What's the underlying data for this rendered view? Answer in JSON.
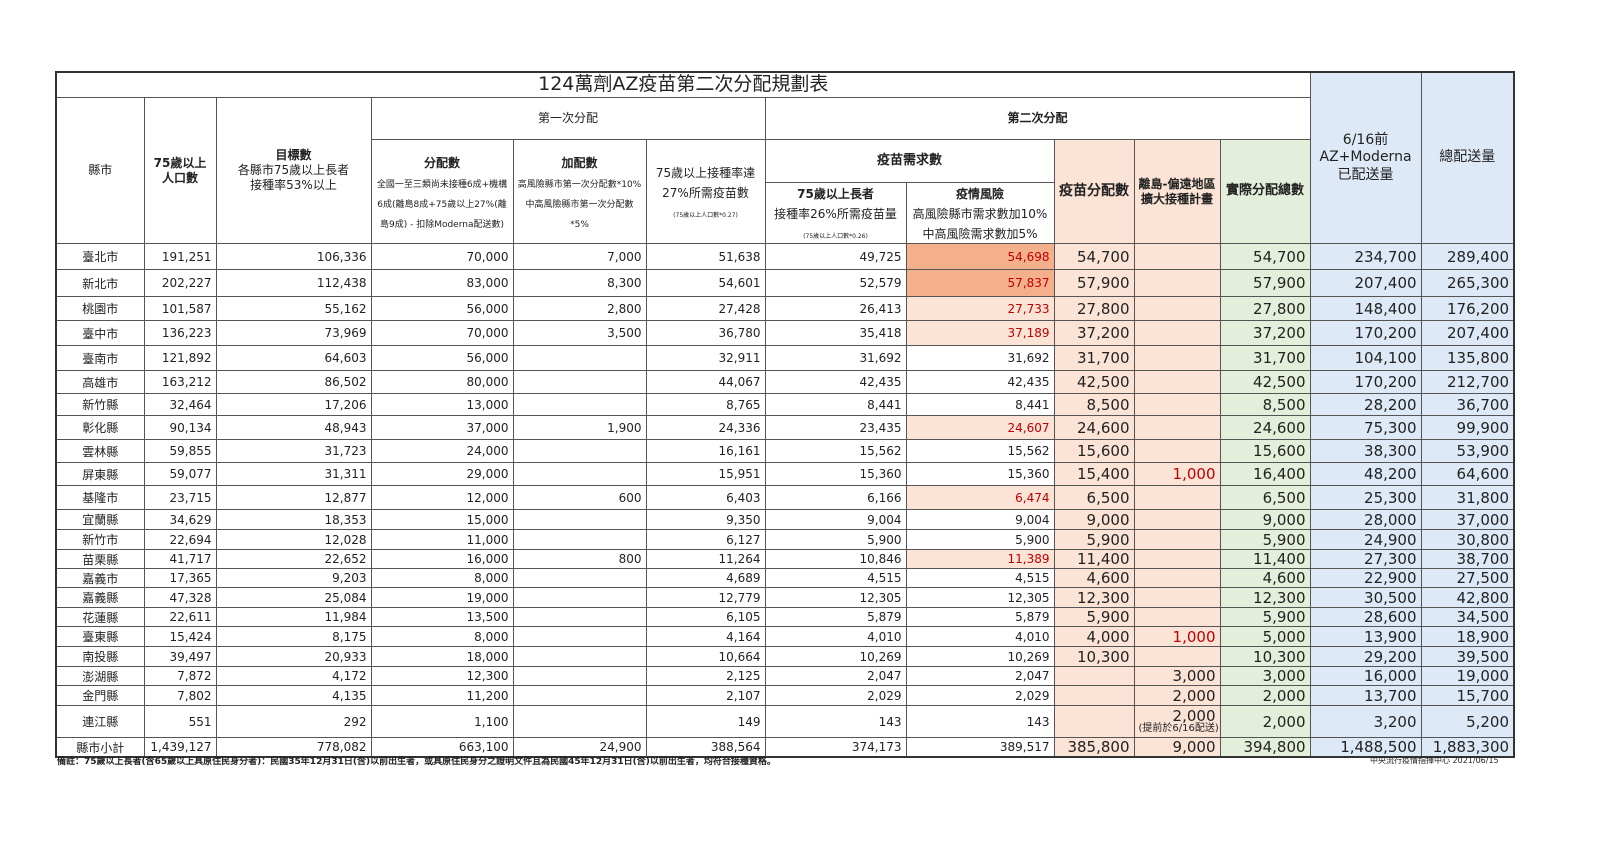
{
  "title": "124萬劑AZ疫苗第二次分配規劃表",
  "headers": {
    "county": "縣市",
    "pop75": "75歲以上\n人口數",
    "target_title": "目標數",
    "target_desc": "各縣市75歲以上長者\n接種率53%以上",
    "first": "第一次分配",
    "alloc_title": "分配數",
    "alloc_desc": "全國一至三類尚未接種6成+機構6成(離島8成+75歲以上27%(離島9成) - 扣除Moderna配送數)",
    "extra_title": "加配數",
    "extra_desc": "高風險縣市第一次分配數*10%\n中高風險縣市第一次分配數*5%",
    "need27_title": "75歲以上接種率達\n27%所需疫苗數",
    "need27_note": "(75歲以上人口數*0.27)",
    "second": "第二次分配",
    "demand": "疫苗需求數",
    "elder_title": "75歲以上長者",
    "elder_desc": "接種率26%所需疫苗量",
    "elder_note": "(75歲以上人口數*0.26)",
    "risk_title": "疫情風險",
    "risk_desc": "高風險縣市需求數加10%\n中高風險需求數加5%",
    "vaccine_alloc": "疫苗分配數",
    "island": "離島-偏遠地區\n擴大接種計畫",
    "actual_total": "實際分配總數",
    "before616": "6/16前\nAZ+Moderna\n已配送量",
    "grand_total": "總配送量"
  },
  "rows": [
    [
      "臺北市",
      "191,251",
      "106,336",
      "70,000",
      "7,000",
      "51,638",
      "49,725",
      "54,698",
      "54,700",
      "",
      "54,700",
      "234,700",
      "289,400"
    ],
    [
      "新北市",
      "202,227",
      "112,438",
      "83,000",
      "8,300",
      "54,601",
      "52,579",
      "57,837",
      "57,900",
      "",
      "57,900",
      "207,400",
      "265,300"
    ],
    [
      "桃園市",
      "101,587",
      "55,162",
      "56,000",
      "2,800",
      "27,428",
      "26,413",
      "27,733",
      "27,800",
      "",
      "27,800",
      "148,400",
      "176,200"
    ],
    [
      "臺中市",
      "136,223",
      "73,969",
      "70,000",
      "3,500",
      "36,780",
      "35,418",
      "37,189",
      "37,200",
      "",
      "37,200",
      "170,200",
      "207,400"
    ],
    [
      "臺南市",
      "121,892",
      "64,603",
      "56,000",
      "",
      "32,911",
      "31,692",
      "31,692",
      "31,700",
      "",
      "31,700",
      "104,100",
      "135,800"
    ],
    [
      "高雄市",
      "163,212",
      "86,502",
      "80,000",
      "",
      "44,067",
      "42,435",
      "42,435",
      "42,500",
      "",
      "42,500",
      "170,200",
      "212,700"
    ],
    [
      "新竹縣",
      "32,464",
      "17,206",
      "13,000",
      "",
      "8,765",
      "8,441",
      "8,441",
      "8,500",
      "",
      "8,500",
      "28,200",
      "36,700"
    ],
    [
      "彰化縣",
      "90,134",
      "48,943",
      "37,000",
      "1,900",
      "24,336",
      "23,435",
      "24,607",
      "24,600",
      "",
      "24,600",
      "75,300",
      "99,900"
    ],
    [
      "雲林縣",
      "59,855",
      "31,723",
      "24,000",
      "",
      "16,161",
      "15,562",
      "15,562",
      "15,600",
      "",
      "15,600",
      "38,300",
      "53,900"
    ],
    [
      "屏東縣",
      "59,077",
      "31,311",
      "29,000",
      "",
      "15,951",
      "15,360",
      "15,360",
      "15,400",
      "1,000",
      "16,400",
      "48,200",
      "64,600"
    ],
    [
      "基隆市",
      "23,715",
      "12,877",
      "12,000",
      "600",
      "6,403",
      "6,166",
      "6,474",
      "6,500",
      "",
      "6,500",
      "25,300",
      "31,800"
    ],
    [
      "宜蘭縣",
      "34,629",
      "18,353",
      "15,000",
      "",
      "9,350",
      "9,004",
      "9,004",
      "9,000",
      "",
      "9,000",
      "28,000",
      "37,000"
    ],
    [
      "新竹市",
      "22,694",
      "12,028",
      "11,000",
      "",
      "6,127",
      "5,900",
      "5,900",
      "5,900",
      "",
      "5,900",
      "24,900",
      "30,800"
    ],
    [
      "苗栗縣",
      "41,717",
      "22,652",
      "16,000",
      "800",
      "11,264",
      "10,846",
      "11,389",
      "11,400",
      "",
      "11,400",
      "27,300",
      "38,700"
    ],
    [
      "嘉義市",
      "17,365",
      "9,203",
      "8,000",
      "",
      "4,689",
      "4,515",
      "4,515",
      "4,600",
      "",
      "4,600",
      "22,900",
      "27,500"
    ],
    [
      "嘉義縣",
      "47,328",
      "25,084",
      "19,000",
      "",
      "12,779",
      "12,305",
      "12,305",
      "12,300",
      "",
      "12,300",
      "30,500",
      "42,800"
    ],
    [
      "花蓮縣",
      "22,611",
      "11,984",
      "13,500",
      "",
      "6,105",
      "5,879",
      "5,879",
      "5,900",
      "",
      "5,900",
      "28,600",
      "34,500"
    ],
    [
      "臺東縣",
      "15,424",
      "8,175",
      "8,000",
      "",
      "4,164",
      "4,010",
      "4,010",
      "4,000",
      "1,000",
      "5,000",
      "13,900",
      "18,900"
    ],
    [
      "南投縣",
      "39,497",
      "20,933",
      "18,000",
      "",
      "10,664",
      "10,269",
      "10,269",
      "10,300",
      "",
      "10,300",
      "29,200",
      "39,500"
    ],
    [
      "澎湖縣",
      "7,872",
      "4,172",
      "12,300",
      "",
      "2,125",
      "2,047",
      "2,047",
      "",
      "3,000",
      "3,000",
      "16,000",
      "19,000"
    ],
    [
      "金門縣",
      "7,802",
      "4,135",
      "11,200",
      "",
      "2,107",
      "2,029",
      "2,029",
      "",
      "2,000",
      "2,000",
      "13,700",
      "15,700"
    ],
    [
      "連江縣",
      "551",
      "292",
      "1,100",
      "",
      "149",
      "143",
      "143",
      "",
      "2,000",
      "2,000",
      "3,200",
      "5,200"
    ],
    [
      "縣市小計",
      "1,439,127",
      "778,082",
      "663,100",
      "24,900",
      "388,564",
      "374,173",
      "389,517",
      "385,800",
      "9,000",
      "394,800",
      "1,488,500",
      "1,883,300"
    ]
  ],
  "lienchiang_note": "(提前於6/16配送)",
  "risk_high_rows": [
    0,
    1
  ],
  "risk_mid_rows": [
    2,
    3,
    7,
    10,
    13
  ],
  "island_red_rows": [
    9,
    17
  ],
  "footnote": "備註：75歲以上長者(含65歲以上具原住民身分者)：民國35年12月31日(含)以前出生者，或具原住民身分之證明文件且為民國45年12月31日(含)以前出生者，均符合接種資格。",
  "source": "中央流行疫情指揮中心  2021/06/15",
  "colors": {
    "blue": "#dde9f6",
    "pink": "#fbe3d6",
    "green": "#e3efda",
    "hot": "#f3b08a",
    "red": "#c00000"
  }
}
